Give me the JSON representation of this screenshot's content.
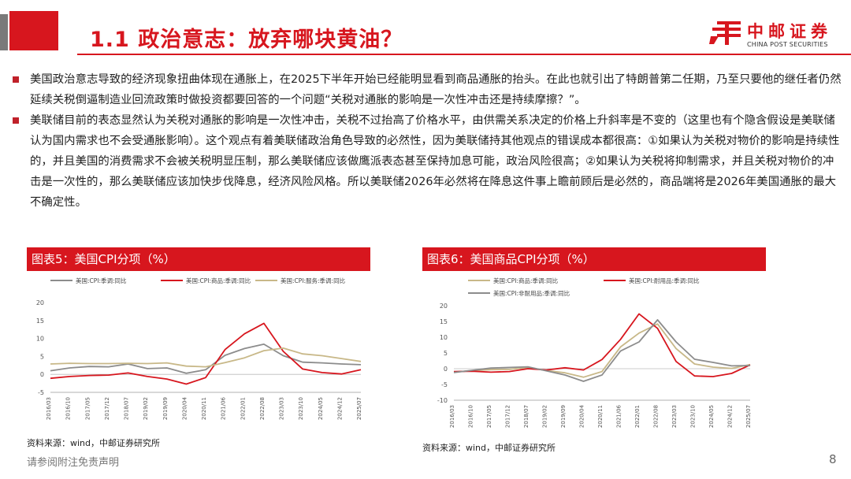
{
  "header": {
    "title": "1.1 政治意志：放弃哪块黄油？",
    "logo_cn": "中邮证券",
    "logo_en": "CHINA POST SECURITIES"
  },
  "body": {
    "para1": "美国政治意志导致的经济现象扭曲体现在通胀上，在2025下半年开始已经能明显看到商品通胀的抬头。在此也就引出了特朗普第二任期，乃至只要他的继任者仍然延续关税倒逼制造业回流政策时做投资都要回答的一个问题“关税对通胀的影响是一次性冲击还是持续摩擦？”。",
    "para2": "美联储目前的表态显然认为关税对通胀的影响是一次性冲击，关税不过抬高了价格水平，由供需关系决定的价格上升斜率是不变的（这里也有个隐含假设是美联储认为国内需求也不会受通胀影响）。这个观点有着美联储政治角色导致的必然性，因为美联储持其他观点的错误成本都很高：①如果认为关税对物价的影响是持续性的，并且美国的消费需求不会被关税明显压制，那么美联储应该做鹰派表态甚至保持加息可能，政治风险很高；②如果认为关税将抑制需求，并且关税对物价的冲击是一次性的，那么美联储应该加快步伐降息，经济风险风格。所以美联储2026年必然将在降息这件事上瞻前顾后是必然的，商品端将是2026年美国通胀的最大不确定性。"
  },
  "chart_left": {
    "header": "图表5：美国CPI分项（%）",
    "source": "资料来源：wind，中邮证券研究所"
  },
  "chart_right": {
    "header": "图表6：美国商品CPI分项（%）",
    "source": "资料来源：wind，中邮证券研究所"
  },
  "footer": {
    "disclaimer": "请参阅附注免责声明",
    "page": "8"
  },
  "colors": {
    "brand_red": "#d7161e",
    "series_gray": "#8c8c8c",
    "series_tan": "#c8b888",
    "series_red": "#d7161e"
  },
  "chart_data": [
    {
      "type": "line",
      "title": "图表5：美国CPI分项（%）",
      "x": [
        "2016/03",
        "2016/10",
        "2017/05",
        "2017/12",
        "2018/07",
        "2019/02",
        "2019/09",
        "2020/04",
        "2020/11",
        "2021/06",
        "2022/01",
        "2022/08",
        "2023/03",
        "2023/10",
        "2024/05",
        "2024/12",
        "2025/07"
      ],
      "ylim": [
        -5,
        20
      ],
      "yticks": [
        "20",
        "15",
        "10",
        "5",
        "0",
        "-5"
      ],
      "series": [
        {
          "name": "美国:CPI:季调:同比",
          "color": "#8c8c8c",
          "values": [
            1,
            1.8,
            2.2,
            2.1,
            2.9,
            1.6,
            1.8,
            0.3,
            1.3,
            5.3,
            7.2,
            8.4,
            5.2,
            3.4,
            3.2,
            2.9,
            2.7
          ]
        },
        {
          "name": "美国:CPI:商品:季调:同比",
          "color": "#d7161e",
          "values": [
            -1.1,
            -0.6,
            -0.3,
            -0.2,
            0.4,
            -0.6,
            -1.3,
            -2.7,
            -0.9,
            6.9,
            11.3,
            14.2,
            6.4,
            1.5,
            0.5,
            0.1,
            1.3
          ]
        },
        {
          "name": "美国:CPI:服务:季调:同比",
          "color": "#c8b888",
          "values": [
            2.9,
            3.1,
            3.0,
            3.0,
            3.1,
            3.0,
            3.2,
            2.3,
            2.1,
            3.3,
            4.6,
            6.6,
            7.3,
            5.7,
            5.2,
            4.4,
            3.6
          ]
        }
      ]
    },
    {
      "type": "line",
      "title": "图表6：美国商品CPI分项（%）",
      "x": [
        "2016/03",
        "2016/10",
        "2017/05",
        "2017/12",
        "2018/07",
        "2019/02",
        "2019/09",
        "2020/04",
        "2020/11",
        "2021/06",
        "2022/01",
        "2022/08",
        "2023/03",
        "2023/10",
        "2024/05",
        "2024/12",
        "2025/07"
      ],
      "ylim": [
        -10,
        20
      ],
      "yticks": [
        "20",
        "15",
        "10",
        "5",
        "0",
        "-5",
        "-10"
      ],
      "series": [
        {
          "name": "美国:CPI:商品:季调:同比",
          "color": "#c8b888",
          "values": [
            -1.1,
            -0.6,
            -0.3,
            -0.2,
            0.4,
            -0.6,
            -1.3,
            -2.7,
            -0.9,
            6.9,
            11.3,
            14.2,
            6.4,
            1.5,
            0.5,
            0.1,
            1.3
          ]
        },
        {
          "name": "美国:CPI:耐用品:季调:同比",
          "color": "#d7161e",
          "values": [
            -0.9,
            -0.8,
            -1.1,
            -0.9,
            0.0,
            -0.4,
            0.3,
            -0.4,
            2.9,
            9.3,
            17.4,
            12.8,
            2.3,
            -2.3,
            -2.5,
            -1.5,
            1.2
          ]
        },
        {
          "name": "美国:CPI:非耐用品:季调:同比",
          "color": "#8c8c8c",
          "values": [
            -1.2,
            -0.5,
            0.2,
            0.4,
            0.6,
            -0.7,
            -2.0,
            -4.0,
            -2.0,
            5.6,
            8.5,
            15.5,
            8.5,
            3.0,
            2.0,
            0.9,
            1.0
          ]
        }
      ]
    }
  ]
}
